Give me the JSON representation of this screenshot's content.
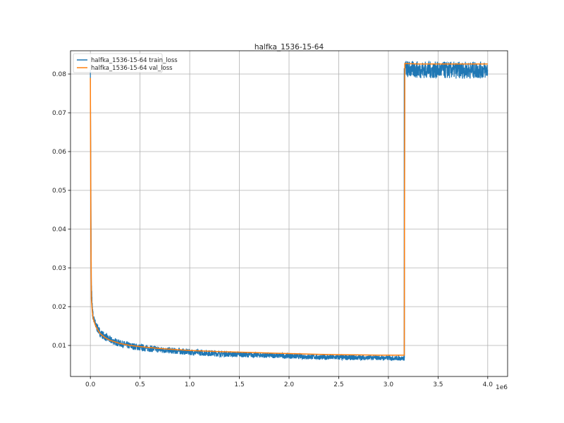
{
  "chart_data": {
    "type": "line",
    "title": "halfka_1536-15-64",
    "xlabel": "",
    "ylabel": "",
    "x_offset_label": "1e6",
    "xlim": [
      -0.2,
      4.2
    ],
    "ylim": [
      0.002,
      0.086
    ],
    "xticks": [
      0.0,
      0.5,
      1.0,
      1.5,
      2.0,
      2.5,
      3.0,
      3.5,
      4.0
    ],
    "xtick_labels": [
      "0.0",
      "0.5",
      "1.0",
      "1.5",
      "2.0",
      "2.5",
      "3.0",
      "3.5",
      "4.0"
    ],
    "yticks": [
      0.01,
      0.02,
      0.03,
      0.04,
      0.05,
      0.06,
      0.07,
      0.08
    ],
    "ytick_labels": [
      "0.01",
      "0.02",
      "0.03",
      "0.04",
      "0.05",
      "0.06",
      "0.07",
      "0.08"
    ],
    "grid": true,
    "legend": "top-left",
    "series": [
      {
        "name": "halfka_1536-15-64 train_loss",
        "color": "#1f77b4",
        "x": [
          0.0,
          0.01,
          0.02,
          0.03,
          0.05,
          0.08,
          0.1,
          0.15,
          0.2,
          0.3,
          0.4,
          0.5,
          0.7,
          1.0,
          1.3,
          1.6,
          2.0,
          2.3,
          2.6,
          2.9,
          3.16,
          3.165,
          3.2,
          3.5,
          3.8,
          4.0
        ],
        "y": [
          0.081,
          0.025,
          0.019,
          0.017,
          0.0155,
          0.014,
          0.0132,
          0.0122,
          0.0114,
          0.0105,
          0.0099,
          0.0095,
          0.0089,
          0.0083,
          0.0079,
          0.0076,
          0.0073,
          0.007,
          0.0069,
          0.0068,
          0.0067,
          0.0815,
          0.0812,
          0.081,
          0.081,
          0.081
        ],
        "spread": [
          0.0,
          0.002,
          0.0015,
          0.0012,
          0.0012,
          0.0011,
          0.0011,
          0.001,
          0.001,
          0.0009,
          0.0009,
          0.0009,
          0.0008,
          0.0008,
          0.0008,
          0.0007,
          0.0007,
          0.0007,
          0.0007,
          0.0006,
          0.0006,
          0.0025,
          0.0022,
          0.0022,
          0.0022,
          0.0022
        ]
      },
      {
        "name": "halfka_1536-15-64 val_loss",
        "color": "#ff7f0e",
        "x": [
          0.0,
          0.005,
          0.01,
          0.02,
          0.03,
          0.05,
          0.08,
          0.1,
          0.15,
          0.2,
          0.3,
          0.4,
          0.5,
          0.7,
          1.0,
          1.3,
          1.6,
          2.0,
          2.3,
          2.6,
          2.9,
          3.16,
          3.165,
          3.3,
          3.6,
          3.9,
          4.0
        ],
        "y": [
          0.079,
          0.04,
          0.022,
          0.0185,
          0.0168,
          0.0152,
          0.0138,
          0.013,
          0.012,
          0.0113,
          0.0105,
          0.01,
          0.0097,
          0.0092,
          0.0087,
          0.0084,
          0.0082,
          0.0079,
          0.0077,
          0.0076,
          0.0075,
          0.0075,
          0.0827,
          0.0826,
          0.0826,
          0.0826,
          0.0826
        ]
      }
    ]
  }
}
